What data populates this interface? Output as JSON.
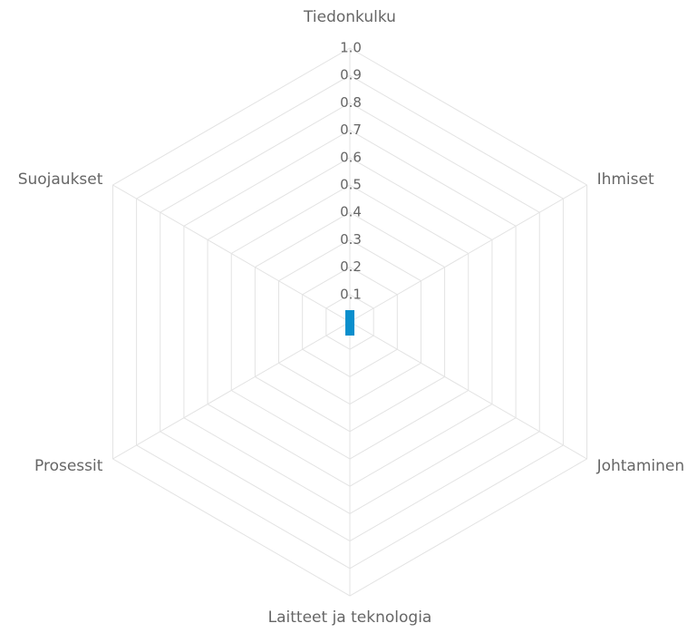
{
  "chart_data": {
    "type": "radar",
    "categories": [
      "Tiedonkulku",
      "Ihmiset",
      "Johtaminen",
      "Laitteet ja teknologia",
      "Prosessit",
      "Suojaukset"
    ],
    "series": [
      {
        "color": "#0a8fcd",
        "values": [
          0,
          0,
          0,
          0,
          0,
          0
        ]
      }
    ],
    "ylim": [
      0,
      1
    ],
    "yticks": [
      0.1,
      0.2,
      0.3,
      0.4,
      0.5,
      0.6,
      0.7,
      0.8,
      0.9,
      {
        "value": 1,
        "label": "1.0"
      }
    ],
    "grid": true
  }
}
